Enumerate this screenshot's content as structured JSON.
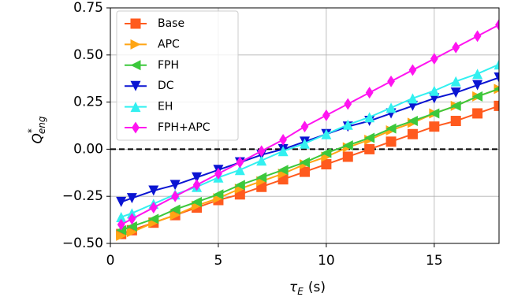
{
  "chart_data": {
    "type": "line",
    "x_label": {
      "symbol": "τ",
      "subscript": "E",
      "unit": "(s)"
    },
    "y_label": {
      "symbol": "Q",
      "superscript": "*",
      "subscript": "eng"
    },
    "x": [
      0.5,
      1,
      2,
      3,
      4,
      5,
      6,
      7,
      8,
      9,
      10,
      11,
      12,
      13,
      14,
      15,
      16,
      17,
      18
    ],
    "series": [
      {
        "name": "Base",
        "color": "#ff5a1e",
        "marker": "square",
        "values": [
          -0.45,
          -0.43,
          -0.39,
          -0.35,
          -0.31,
          -0.27,
          -0.24,
          -0.2,
          -0.16,
          -0.12,
          -0.08,
          -0.04,
          0.0,
          0.04,
          0.08,
          0.12,
          0.15,
          0.19,
          0.23
        ]
      },
      {
        "name": "APC",
        "color": "#ffa514",
        "marker": "triangle-right",
        "values": [
          -0.46,
          -0.44,
          -0.39,
          -0.35,
          -0.3,
          -0.26,
          -0.21,
          -0.17,
          -0.13,
          -0.08,
          -0.04,
          0.01,
          0.05,
          0.1,
          0.14,
          0.19,
          0.23,
          0.28,
          0.32
        ]
      },
      {
        "name": "FPH",
        "color": "#3cc83c",
        "marker": "triangle-left",
        "values": [
          -0.43,
          -0.41,
          -0.37,
          -0.32,
          -0.28,
          -0.24,
          -0.19,
          -0.15,
          -0.11,
          -0.07,
          -0.02,
          0.02,
          0.06,
          0.11,
          0.15,
          0.19,
          0.23,
          0.28,
          0.32
        ]
      },
      {
        "name": "DC",
        "color": "#0a14d2",
        "marker": "triangle-down",
        "values": [
          -0.28,
          -0.26,
          -0.22,
          -0.19,
          -0.15,
          -0.11,
          -0.07,
          -0.03,
          0.0,
          0.04,
          0.08,
          0.12,
          0.15,
          0.19,
          0.23,
          0.27,
          0.3,
          0.34,
          0.38
        ]
      },
      {
        "name": "EH",
        "color": "#32f0f0",
        "marker": "triangle-up",
        "values": [
          -0.36,
          -0.34,
          -0.29,
          -0.24,
          -0.2,
          -0.15,
          -0.11,
          -0.06,
          -0.01,
          0.03,
          0.08,
          0.13,
          0.17,
          0.22,
          0.27,
          0.31,
          0.36,
          0.4,
          0.45
        ]
      },
      {
        "name": "FPH+APC",
        "color": "#ff14f0",
        "marker": "diamond",
        "values": [
          -0.4,
          -0.37,
          -0.31,
          -0.25,
          -0.19,
          -0.13,
          -0.07,
          -0.01,
          0.05,
          0.12,
          0.18,
          0.24,
          0.3,
          0.36,
          0.42,
          0.48,
          0.54,
          0.6,
          0.66
        ]
      }
    ],
    "xlim": [
      0,
      18
    ],
    "ylim": [
      -0.5,
      0.75
    ],
    "xticks": [
      0,
      5,
      10,
      15
    ],
    "yticks": [
      {
        "value": -0.5,
        "label": "−0.50"
      },
      {
        "value": -0.25,
        "label": "−0.25"
      },
      {
        "value": 0,
        "label": "0.00"
      },
      0.25,
      {
        "value": 0.5,
        "label": "0.50"
      },
      0.75
    ],
    "hline": 0,
    "grid": true,
    "legend": "upper-left"
  }
}
